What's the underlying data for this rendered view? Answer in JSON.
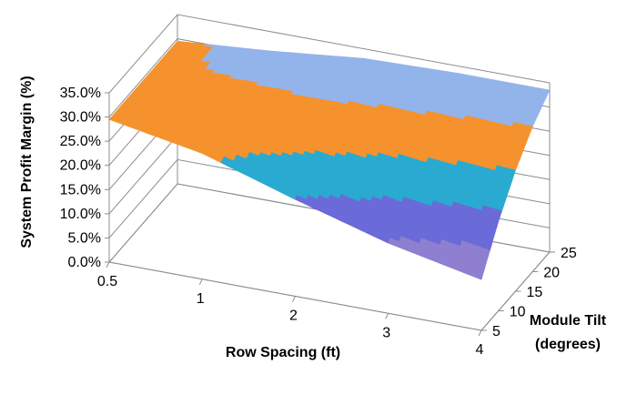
{
  "chart_data": {
    "type": "surface",
    "title": "",
    "xlabel": "Row Spacing (ft)",
    "ylabel": "Module Tilt",
    "ylabel_line2": "(degrees)",
    "zlabel": "System Profit Margin (%)",
    "x_ticks": [
      "0.5",
      "1",
      "2",
      "3",
      "4"
    ],
    "y_ticks": [
      "5",
      "10",
      "15",
      "20",
      "25"
    ],
    "z_ticks": [
      "0.0%",
      "5.0%",
      "10.0%",
      "15.0%",
      "20.0%",
      "25.0%",
      "30.0%",
      "35.0%"
    ],
    "zlim": [
      0,
      35
    ],
    "grid": true,
    "x": [
      0.5,
      1,
      2,
      3,
      4
    ],
    "y": [
      5,
      10,
      15,
      20,
      25
    ],
    "z": [
      [
        29.5,
        29.5,
        29.5,
        29.5,
        29.5
      ],
      [
        26.0,
        27.5,
        29.0,
        30.5,
        31.0
      ],
      [
        20.0,
        24.5,
        28.5,
        31.5,
        33.0
      ],
      [
        14.5,
        21.0,
        26.5,
        31.0,
        33.5
      ],
      [
        10.5,
        18.5,
        25.0,
        30.0,
        33.5
      ]
    ],
    "band_colors": {
      "0-5": "#7b3fa0",
      "5-10": "#8e63c4",
      "10-15": "#8f7fd0",
      "15-20": "#6a6ad8",
      "20-25": "#2aaad0",
      "25-30": "#f5922e",
      "30-35": "#93b4ea"
    }
  }
}
